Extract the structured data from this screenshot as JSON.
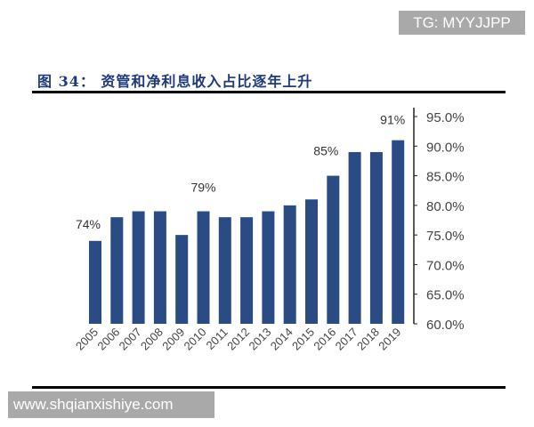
{
  "watermarks": {
    "top": "TG: MYYJJPP",
    "bottom": "www.shqianxishiye.com"
  },
  "chart_data": {
    "type": "bar",
    "title": "图 34：  资管和净利息收入占比逐年上升",
    "categories": [
      "2005",
      "2006",
      "2007",
      "2008",
      "2009",
      "2010",
      "2011",
      "2012",
      "2013",
      "2014",
      "2015",
      "2016",
      "2017",
      "2018",
      "2019"
    ],
    "values": [
      74,
      78,
      79,
      79,
      75,
      79,
      78,
      78,
      79,
      80,
      81,
      85,
      89,
      89,
      91
    ],
    "data_labels": [
      {
        "category": "2005",
        "text": "74%"
      },
      {
        "category": "2010",
        "text": "79%"
      },
      {
        "category": "2016",
        "text": "85%"
      },
      {
        "category": "2019",
        "text": "91%"
      }
    ],
    "ylim": [
      60,
      95
    ],
    "yticks": [
      "60.0%",
      "65.0%",
      "70.0%",
      "75.0%",
      "80.0%",
      "85.0%",
      "90.0%",
      "95.0%"
    ],
    "y_axis_position": "right",
    "grid": false,
    "bar_color": "#2b4b85"
  }
}
